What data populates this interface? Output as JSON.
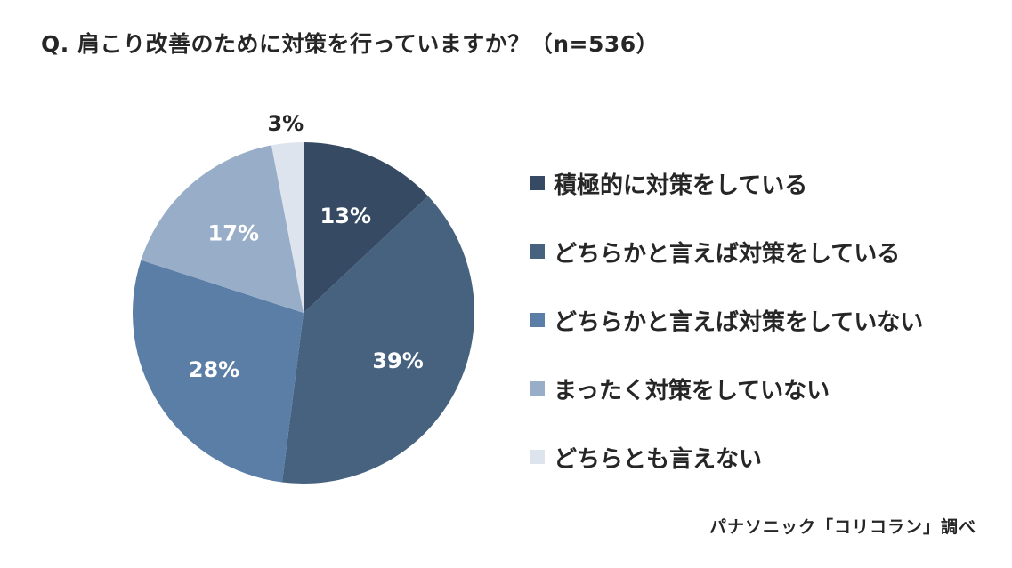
{
  "title": "Q. 肩こり改善のために対策を行っていますか？（n=536）",
  "source": "パナソニック「コリコラン」調べ",
  "chart_data": {
    "type": "pie",
    "title": "Q. 肩こり改善のために対策を行っていますか？（n=536）",
    "n": 536,
    "legend_position": "right",
    "start": "12 o'clock",
    "direction": "clockwise",
    "slices": [
      {
        "label": "積極的に対策をしている",
        "value": 13,
        "display": "13%",
        "color": "#364a63",
        "label_color": "#ffffff"
      },
      {
        "label": "どちらかと言えば対策をしている",
        "value": 39,
        "display": "39%",
        "color": "#46627f",
        "label_color": "#ffffff"
      },
      {
        "label": "どちらかと言えば対策をしていない",
        "value": 28,
        "display": "28%",
        "color": "#5a7ea6",
        "label_color": "#ffffff"
      },
      {
        "label": "まったく対策をしていない",
        "value": 17,
        "display": "17%",
        "color": "#98aec8",
        "label_color": "#ffffff"
      },
      {
        "label": "どちらとも言えない",
        "value": 3,
        "display": "3%",
        "color": "#dde4ed",
        "label_color": "#262626"
      }
    ]
  }
}
